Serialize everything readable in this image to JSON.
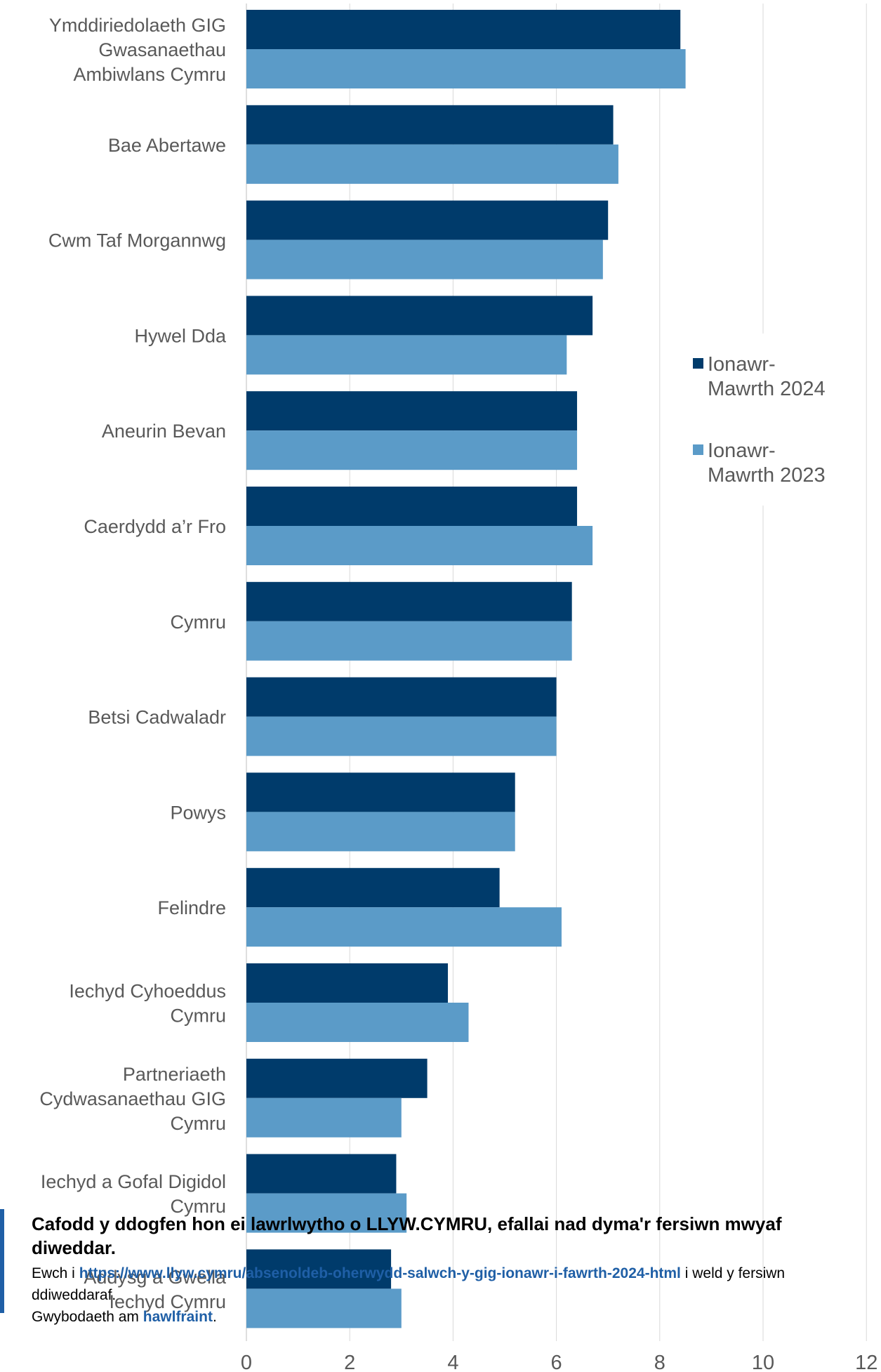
{
  "chart_data": {
    "type": "bar",
    "orientation": "horizontal",
    "categories": [
      "Ymddiriedolaeth GIG Gwasanaethau Ambiwlans Cymru",
      "Bae Abertawe",
      "Cwm Taf Morgannwg",
      "Hywel Dda",
      "Aneurin Bevan",
      "Caerdydd a’r Fro",
      "Cymru",
      "Betsi Cadwaladr",
      "Powys",
      "Felindre",
      "Iechyd Cyhoeddus Cymru",
      "Partneriaeth Cydwasanaethau GIG Cymru",
      "Iechyd a Gofal Digidol Cymru",
      "Addysg a Gwella Iechyd Cymru"
    ],
    "category_lines": [
      [
        "Ymddiriedolaeth GIG",
        "Gwasanaethau",
        "Ambiwlans Cymru"
      ],
      [
        "Bae Abertawe"
      ],
      [
        "Cwm Taf Morgannwg"
      ],
      [
        "Hywel Dda"
      ],
      [
        "Aneurin Bevan"
      ],
      [
        "Caerdydd a’r Fro"
      ],
      [
        "Cymru"
      ],
      [
        "Betsi Cadwaladr"
      ],
      [
        "Powys"
      ],
      [
        "Felindre"
      ],
      [
        "Iechyd Cyhoeddus",
        "Cymru"
      ],
      [
        "Partneriaeth",
        "Cydwasanaethau GIG",
        "Cymru"
      ],
      [
        "Iechyd a Gofal Digidol",
        "Cymru"
      ],
      [
        "Addysg a Gwella",
        "Iechyd Cymru"
      ]
    ],
    "series": [
      {
        "name": "Ionawr-Mawrth 2024",
        "legend_lines": [
          "Ionawr-",
          "Mawrth 2024"
        ],
        "color": "#003b6b",
        "values": [
          8.4,
          7.1,
          7.0,
          6.7,
          6.4,
          6.4,
          6.3,
          6.0,
          5.2,
          4.9,
          3.9,
          3.5,
          2.9,
          2.8
        ]
      },
      {
        "name": "Ionawr-Mawrth 2023",
        "legend_lines": [
          "Ionawr-",
          "Mawrth 2023"
        ],
        "color": "#5b9bc8",
        "values": [
          8.5,
          7.2,
          6.9,
          6.2,
          6.4,
          6.7,
          6.3,
          6.0,
          5.2,
          6.1,
          4.3,
          3.0,
          3.1,
          3.0
        ]
      }
    ],
    "xlim": [
      0,
      12
    ],
    "x_ticks": [
      0,
      2,
      4,
      6,
      8,
      10,
      12
    ],
    "grid": true,
    "legend_position": "right"
  },
  "notice": {
    "title": "Cafodd y ddogfen hon ei lawrlwytho o LLYW.CYMRU, efallai nad dyma'r fersiwn mwyaf diweddar.",
    "line_prefix": "Ewch i ",
    "link_url_text": "https://www.llyw.cymru/absenoldeb-oherwydd-salwch-y-gig-ionawr-i-fawrth-2024-html",
    "line_suffix": " i weld y fersiwn ddiweddaraf.",
    "copyright_prefix": "Gwybodaeth am ",
    "copyright_link": "hawlfraint",
    "copyright_suffix": "."
  }
}
